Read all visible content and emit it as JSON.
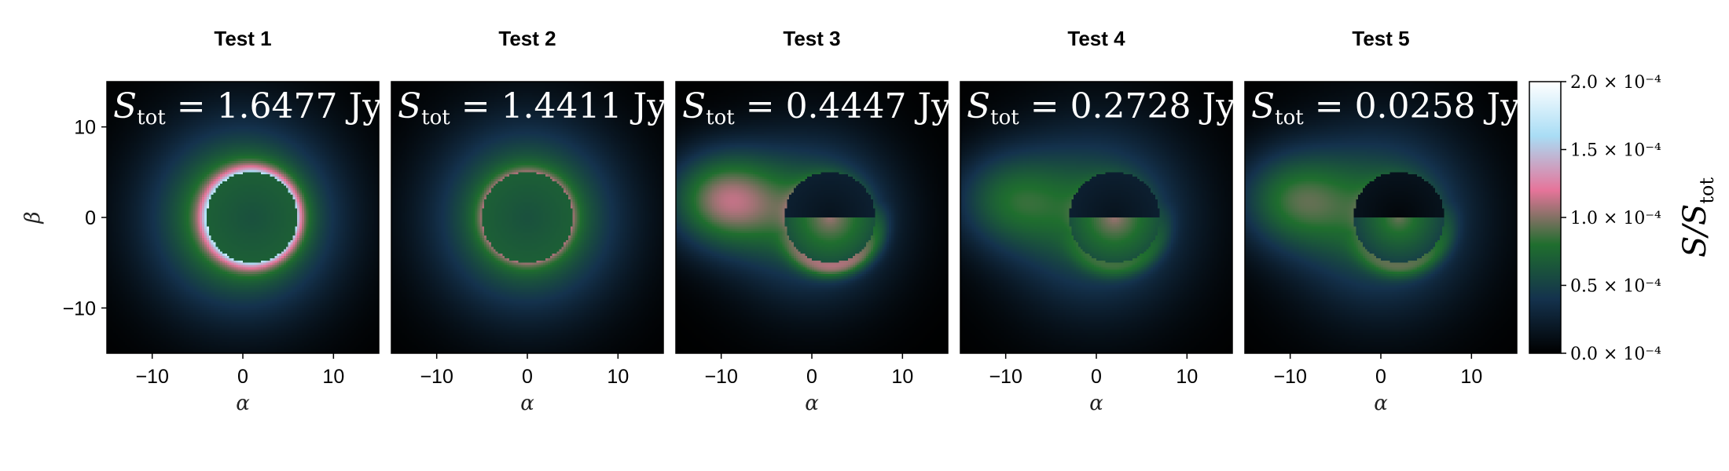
{
  "chart_data": {
    "type": "heatmap",
    "x_range": [
      -15,
      15
    ],
    "y_range": [
      -15,
      15
    ],
    "x_ticks": [
      -10,
      0,
      10
    ],
    "y_ticks": [
      -10,
      0,
      10
    ],
    "xlabel": "α",
    "ylabel": "β",
    "colormap_stops": [
      "#000000",
      "#14324d",
      "#1f6e2e",
      "#e6749a",
      "#a9ddf5",
      "#ffffff"
    ],
    "colorbar": {
      "label": "S/S",
      "label_sub": "tot",
      "range": [
        0.0,
        2.0
      ],
      "ticks": [
        {
          "value": 0.0,
          "label": "0.0 × 10⁻⁴"
        },
        {
          "value": 0.5,
          "label": "0.5 × 10⁻⁴"
        },
        {
          "value": 1.0,
          "label": "1.0 × 10⁻⁴"
        },
        {
          "value": 1.5,
          "label": "1.5 × 10⁻⁴"
        },
        {
          "value": 2.0,
          "label": "2.0 × 10⁻⁴"
        }
      ]
    },
    "panels": [
      {
        "title": "Test 1",
        "flux_value": "1.6477",
        "flux_unit": "Jy",
        "flux_symbol": "S",
        "flux_sub": "tot",
        "show_ylabels": true,
        "model": {
          "ring_x": 1,
          "ring_y": 0,
          "ring_r": 5,
          "inner": 0.6,
          "peak": 1.95,
          "halo": 1.05,
          "halo_scale": 10,
          "asym": 0.0
        }
      },
      {
        "title": "Test 2",
        "flux_value": "1.4411",
        "flux_unit": "Jy",
        "flux_symbol": "S",
        "flux_sub": "tot",
        "show_ylabels": false,
        "model": {
          "ring_x": 0,
          "ring_y": 0,
          "ring_r": 5,
          "inner": 0.6,
          "peak": 1.3,
          "halo": 0.95,
          "halo_scale": 10,
          "asym": 0.0
        }
      },
      {
        "title": "Test 3",
        "flux_value": "0.4447",
        "flux_unit": "Jy",
        "flux_symbol": "S",
        "flux_sub": "tot",
        "show_ylabels": false,
        "model": {
          "ring_x": 2,
          "ring_y": 0,
          "ring_r": 5,
          "inner": 0.15,
          "peak": 1.4,
          "halo": 0.7,
          "halo_scale": 9,
          "asym": 1.0
        }
      },
      {
        "title": "Test 4",
        "flux_value": "0.2728",
        "flux_unit": "Jy",
        "flux_symbol": "S",
        "flux_sub": "tot",
        "show_ylabels": false,
        "model": {
          "ring_x": 2,
          "ring_y": 0,
          "ring_r": 5,
          "inner": 0.15,
          "peak": 1.05,
          "halo": 0.7,
          "halo_scale": 10,
          "asym": 0.6
        }
      },
      {
        "title": "Test 5",
        "flux_value": "0.0258",
        "flux_unit": "Jy",
        "flux_symbol": "S",
        "flux_sub": "tot",
        "show_ylabels": false,
        "model": {
          "ring_x": 2,
          "ring_y": 0,
          "ring_r": 5,
          "inner": 0.05,
          "peak": 1.1,
          "halo": 0.72,
          "halo_scale": 10,
          "asym": 0.7
        }
      }
    ]
  }
}
